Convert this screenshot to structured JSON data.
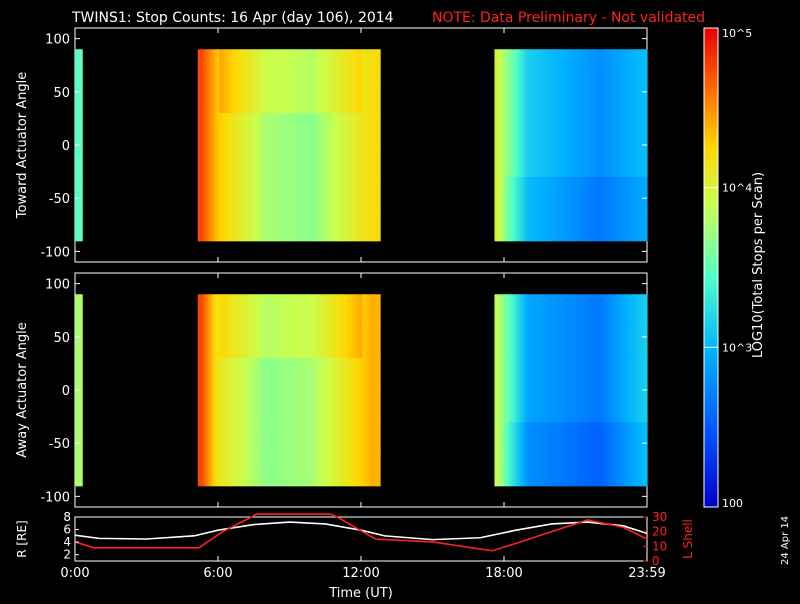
{
  "header": {
    "title": "TWINS1: Stop Counts: 16 Apr (day 106), 2014",
    "note": "NOTE: Data Preliminary - Not validated",
    "note_color": "#ff2020"
  },
  "footer": {
    "date_stamp": "24 Apr 14"
  },
  "colorbar": {
    "label": "LOG10(Total Stops per Scan)",
    "ticks": [
      "10^5",
      "10^4",
      "10^3",
      "100"
    ],
    "range_log10": [
      2,
      5
    ],
    "colors": [
      "#0000c8",
      "#0050ff",
      "#00b4ff",
      "#50ffc8",
      "#c8ff50",
      "#ffd700",
      "#ff6400",
      "#e60000"
    ]
  },
  "chart_data": [
    {
      "type": "heatmap",
      "panel": "toward",
      "ylabel": "Toward Actuator Angle",
      "yticks": [
        "100",
        "50",
        "0",
        "-50",
        "-100"
      ],
      "ylim": [
        -110,
        110
      ],
      "xlim_hours": [
        0,
        24
      ],
      "data_angle_range": [
        -90,
        90
      ],
      "intervals_hours": [
        [
          0.0,
          0.3
        ],
        [
          5.15,
          12.8
        ],
        [
          17.6,
          24.0
        ]
      ],
      "value_units": "log10(total stops per scan)",
      "approx_levels_log10": [
        {
          "t_hours": 0.1,
          "value": 3.3
        },
        {
          "t_hours": 5.3,
          "value": 4.7
        },
        {
          "t_hours": 6.0,
          "value": 4.2
        },
        {
          "t_hours": 8.0,
          "value": 3.6
        },
        {
          "t_hours": 10.0,
          "value": 3.5
        },
        {
          "t_hours": 12.5,
          "value": 4.1
        },
        {
          "t_hours": 17.7,
          "value": 3.8
        },
        {
          "t_hours": 19.0,
          "value": 3.0
        },
        {
          "t_hours": 22.0,
          "value": 2.7
        },
        {
          "t_hours": 23.9,
          "value": 2.9
        }
      ]
    },
    {
      "type": "heatmap",
      "panel": "away",
      "ylabel": "Away Actuator Angle",
      "yticks": [
        "100",
        "50",
        "0",
        "-50",
        "-100"
      ],
      "ylim": [
        -110,
        110
      ],
      "xlim_hours": [
        0,
        24
      ],
      "data_angle_range": [
        -90,
        90
      ],
      "intervals_hours": [
        [
          0.0,
          0.3
        ],
        [
          5.15,
          12.8
        ],
        [
          17.6,
          24.0
        ]
      ],
      "value_units": "log10(total stops per scan)",
      "approx_levels_log10": [
        {
          "t_hours": 0.1,
          "value": 3.6
        },
        {
          "t_hours": 5.3,
          "value": 4.7
        },
        {
          "t_hours": 6.0,
          "value": 4.0
        },
        {
          "t_hours": 8.0,
          "value": 3.5
        },
        {
          "t_hours": 10.0,
          "value": 3.6
        },
        {
          "t_hours": 12.5,
          "value": 4.3
        },
        {
          "t_hours": 17.7,
          "value": 3.7
        },
        {
          "t_hours": 19.0,
          "value": 2.8
        },
        {
          "t_hours": 22.0,
          "value": 2.6
        },
        {
          "t_hours": 23.9,
          "value": 3.0
        }
      ]
    },
    {
      "type": "line",
      "panel": "ephemeris",
      "xlabel": "Time (UT)",
      "xticks": [
        "0:00",
        "6:00",
        "12:00",
        "18:00",
        "23:59"
      ],
      "xlim_hours": [
        0,
        24
      ],
      "series": [
        {
          "name": "R [RE]",
          "axis": "left",
          "color": "#ffffff",
          "ylim": [
            1,
            8
          ],
          "yticks": [
            "8",
            "6",
            "4",
            "2"
          ],
          "x": [
            0,
            1,
            3,
            5,
            6,
            7.5,
            9,
            10.5,
            12,
            13,
            15,
            17,
            18.5,
            20,
            21.5,
            23,
            24
          ],
          "y": [
            5.1,
            4.6,
            4.5,
            5.0,
            5.9,
            6.8,
            7.2,
            6.9,
            5.9,
            5.0,
            4.4,
            4.7,
            5.9,
            6.9,
            7.2,
            6.6,
            5.4
          ]
        },
        {
          "name": "L Shell",
          "axis": "right",
          "color": "#ff2020",
          "ylim": [
            0,
            30
          ],
          "yticks": [
            "30",
            "20",
            "10",
            "0"
          ],
          "x": [
            0,
            0.8,
            3,
            5.2,
            6.2,
            7.4,
            7.6,
            10.7,
            11,
            12.6,
            15,
            17.5,
            18.5,
            20,
            21.5,
            23,
            24
          ],
          "y": [
            13,
            9,
            9,
            9,
            20,
            30,
            32,
            32,
            30,
            15,
            13,
            7,
            12,
            20,
            28,
            23,
            15
          ]
        }
      ]
    }
  ]
}
